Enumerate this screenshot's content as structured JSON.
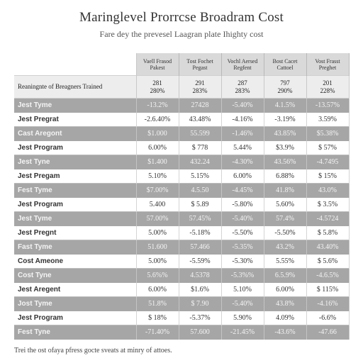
{
  "header": {
    "title": "Maringlevel Prorrcse Broadram Cost",
    "subtitle": "Fare dey the prevesel Laagran plate Ihighty cost"
  },
  "table": {
    "columns": [
      "Vaell Frasod Pakest",
      "Tost Fochet Pegast",
      "Vochl Aersed Regfent",
      "Bost Cacet Cattoel",
      "Vost Frasst Preghet"
    ],
    "subheader": {
      "label": "Reaningnte of Breagners Trained",
      "values": [
        "281\n280%",
        "291\n283%",
        "287\n283%",
        "797\n290%",
        "201\n228%"
      ]
    },
    "rows": [
      {
        "label": "Jest Tyme",
        "shade": "dark",
        "values": [
          "-13.2%",
          "27428",
          "-5.40%",
          "4.1.5%",
          "-13.57%"
        ]
      },
      {
        "label": "Jest Pregrat",
        "shade": "light",
        "values": [
          "-2.6.40%",
          "43.48%",
          "-4.16%",
          "-3.19%",
          "3.59%"
        ]
      },
      {
        "label": "Cast Aregont",
        "shade": "dark",
        "values": [
          "$1.000",
          "55.599",
          "-1.46%",
          "43.85%",
          "$5.38%"
        ]
      },
      {
        "label": "Jest Program",
        "shade": "light",
        "values": [
          "6.00%",
          "$ 778",
          "5.44%",
          "$3.9%",
          "$ 57%"
        ]
      },
      {
        "label": "Jest Tyne",
        "shade": "dark",
        "values": [
          "$1.400",
          "432.24",
          "-4.30%",
          "43.56%",
          "-4.7495"
        ]
      },
      {
        "label": "Jest Pregam",
        "shade": "light",
        "values": [
          "5.10%",
          "5.15%",
          "6.00%",
          "6.88%",
          "$ 15%"
        ]
      },
      {
        "label": "Fest Tyme",
        "shade": "dark",
        "values": [
          "$7.00%",
          "4.5.50",
          "-4.45%",
          "41.8%",
          "43.0%"
        ]
      },
      {
        "label": "Jest Program",
        "shade": "light",
        "values": [
          "5.400",
          "$ 5.89",
          "-5.80%",
          "5.60%",
          "$ 3.5%"
        ]
      },
      {
        "label": "Jest Tyme",
        "shade": "dark",
        "values": [
          "57.00%",
          "57.45%",
          "-5.40%",
          "57.4%",
          "-4.5724"
        ]
      },
      {
        "label": "Jest Pregnt",
        "shade": "light",
        "values": [
          "5.00%",
          "-5.18%",
          "-5.50%",
          "-5.50%",
          "$ 5.8%"
        ]
      },
      {
        "label": "Fast Tyme",
        "shade": "dark",
        "values": [
          "51.600",
          "57.466",
          "-5.35%",
          "43.2%",
          "43.40%"
        ]
      },
      {
        "label": "Cost Ameone",
        "shade": "light",
        "values": [
          "5.00%",
          "-5.59%",
          "-5.30%",
          "5.55%",
          "$ 5.6%"
        ]
      },
      {
        "label": "Cost Tyne",
        "shade": "dark",
        "values": [
          "5.6%%",
          "4.5378",
          "-5.3%%",
          "6.5.9%",
          "-4.6.5%"
        ]
      },
      {
        "label": "Jest Aregent",
        "shade": "light",
        "values": [
          "6.00%",
          "$1.6%",
          "5.10%",
          "6.00%",
          "$ 115%"
        ]
      },
      {
        "label": "Jost Tyme",
        "shade": "dark",
        "values": [
          "51.8%",
          "$ 7.90",
          "-5.40%",
          "43.8%",
          "-4.16%"
        ]
      },
      {
        "label": "Jest Program",
        "shade": "light",
        "values": [
          "$ 18%",
          "-5.37%",
          "5.90%",
          "4.09%",
          "-6.6%"
        ]
      },
      {
        "label": "Fest Tyne",
        "shade": "dark",
        "values": [
          "-71.40%",
          "57.600",
          "-21.45%",
          "-43.6%",
          "-47.66"
        ]
      }
    ]
  },
  "footnote": "Trei the ost ofaya pfress gocte sveats at minry of attoes."
}
